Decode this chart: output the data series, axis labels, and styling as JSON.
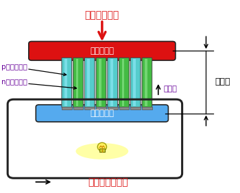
{
  "title_heat": "熱エネルギー",
  "title_electric": "電気エネルギー",
  "label_high": "高　温　部",
  "label_low": "低　温　部",
  "label_p": "p型熱電材料",
  "label_n": "n型熱電材料",
  "label_current": "電　流",
  "label_temp_diff": "温度差",
  "high_color": "#dd1111",
  "low_color": "#55aaee",
  "p_color": "#55cccc",
  "n_color": "#44bb44",
  "text_purple": "#660099",
  "arrow_red": "#dd1111"
}
